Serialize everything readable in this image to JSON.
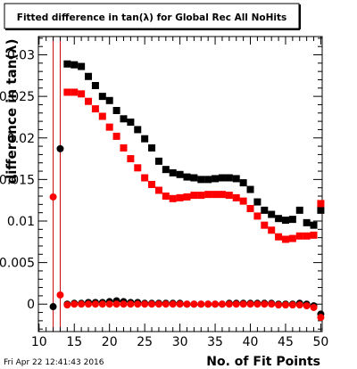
{
  "chart_data": {
    "type": "scatter",
    "title": "Fitted difference in tan(λ) for Global Rec All NoHits",
    "xlabel": "No. of Fit Points",
    "ylabel": "difference in tan(λ)",
    "timestamp": "Fri Apr 22 12:41:43 2016",
    "xlim": [
      9.9,
      50.2
    ],
    "ylim": [
      -0.0033,
      0.0322
    ],
    "x_ticks": [
      10,
      15,
      20,
      25,
      30,
      35,
      40,
      45,
      50
    ],
    "y_ticks": [
      {
        "value": 0,
        "label": "0"
      },
      {
        "value": 0.005,
        "label": "0.005"
      },
      {
        "value": 0.01,
        "label": "0.01"
      },
      {
        "value": 0.015,
        "label": "0.015"
      },
      {
        "value": 0.02,
        "label": "0.02"
      },
      {
        "value": 0.025,
        "label": "0.025"
      },
      {
        "value": 0.03,
        "label": "0.03"
      }
    ],
    "vertical_lines": [
      12,
      13
    ],
    "colors": {
      "black_series": "#000000",
      "red_series": "#ff0000",
      "vline": "#cc0000"
    },
    "series": [
      {
        "color": "black",
        "marker": "square",
        "points": [
          [
            14,
            0.0289
          ],
          [
            15,
            0.0288
          ],
          [
            16,
            0.0286
          ],
          [
            17,
            0.0274
          ],
          [
            18,
            0.0263
          ],
          [
            19,
            0.025
          ],
          [
            20,
            0.0245
          ],
          [
            21,
            0.0233
          ],
          [
            22,
            0.0223
          ],
          [
            23,
            0.0219
          ],
          [
            24,
            0.021
          ],
          [
            25,
            0.0199
          ],
          [
            26,
            0.0188
          ],
          [
            27,
            0.0172
          ],
          [
            28,
            0.0162
          ],
          [
            29,
            0.0158
          ],
          [
            30,
            0.0156
          ],
          [
            31,
            0.0153
          ],
          [
            32,
            0.0152
          ],
          [
            33,
            0.015
          ],
          [
            34,
            0.015
          ],
          [
            35,
            0.0151
          ],
          [
            36,
            0.0152
          ],
          [
            37,
            0.0152
          ],
          [
            38,
            0.0151
          ],
          [
            39,
            0.0146
          ],
          [
            40,
            0.0138
          ],
          [
            41,
            0.0123
          ],
          [
            42,
            0.0113
          ],
          [
            43,
            0.0108
          ],
          [
            44,
            0.0103
          ],
          [
            45,
            0.0101
          ],
          [
            46,
            0.0102
          ],
          [
            47,
            0.0113
          ],
          [
            48,
            0.0098
          ],
          [
            49,
            0.0095
          ],
          [
            50,
            0.0113
          ]
        ]
      },
      {
        "color": "red",
        "marker": "square",
        "points": [
          [
            14,
            0.0255
          ],
          [
            15,
            0.0255
          ],
          [
            16,
            0.0253
          ],
          [
            17,
            0.0244
          ],
          [
            18,
            0.0235
          ],
          [
            19,
            0.0226
          ],
          [
            20,
            0.0213
          ],
          [
            21,
            0.0202
          ],
          [
            22,
            0.0188
          ],
          [
            23,
            0.0175
          ],
          [
            24,
            0.0164
          ],
          [
            25,
            0.0152
          ],
          [
            26,
            0.0144
          ],
          [
            27,
            0.0137
          ],
          [
            28,
            0.013
          ],
          [
            29,
            0.0127
          ],
          [
            30,
            0.0128
          ],
          [
            31,
            0.0129
          ],
          [
            32,
            0.0131
          ],
          [
            33,
            0.0131
          ],
          [
            34,
            0.0132
          ],
          [
            35,
            0.0132
          ],
          [
            36,
            0.0132
          ],
          [
            37,
            0.0131
          ],
          [
            38,
            0.0128
          ],
          [
            39,
            0.0124
          ],
          [
            40,
            0.0115
          ],
          [
            41,
            0.0106
          ],
          [
            42,
            0.0095
          ],
          [
            43,
            0.0089
          ],
          [
            44,
            0.0081
          ],
          [
            45,
            0.0078
          ],
          [
            46,
            0.0079
          ],
          [
            47,
            0.0082
          ],
          [
            48,
            0.0082
          ],
          [
            49,
            0.0083
          ],
          [
            50,
            0.0121
          ]
        ]
      },
      {
        "color": "black",
        "marker": "circle",
        "points": [
          [
            12,
            -0.0003
          ],
          [
            13,
            0.0187
          ],
          [
            14,
            0
          ],
          [
            15,
            0.0001
          ],
          [
            16,
            0.0001
          ],
          [
            17,
            0.0002
          ],
          [
            18,
            0.0002
          ],
          [
            19,
            0.0002
          ],
          [
            20,
            0.0003
          ],
          [
            21,
            0.0004
          ],
          [
            22,
            0.0003
          ],
          [
            23,
            0.0002
          ],
          [
            24,
            0.0002
          ],
          [
            25,
            0.0001
          ],
          [
            26,
            0.0001
          ],
          [
            27,
            0.0001
          ],
          [
            28,
            0.0001
          ],
          [
            29,
            0.0001
          ],
          [
            30,
            0.0001
          ],
          [
            31,
            0
          ],
          [
            32,
            0
          ],
          [
            33,
            0
          ],
          [
            34,
            0
          ],
          [
            35,
            0
          ],
          [
            36,
            0
          ],
          [
            37,
            0.0001
          ],
          [
            38,
            0.0001
          ],
          [
            39,
            0.0001
          ],
          [
            40,
            0.0001
          ],
          [
            41,
            0.0001
          ],
          [
            42,
            0.0001
          ],
          [
            43,
            0.0001
          ],
          [
            44,
            0
          ],
          [
            45,
            0
          ],
          [
            46,
            0
          ],
          [
            47,
            0.0001
          ],
          [
            48,
            0
          ],
          [
            49,
            -0.0002
          ],
          [
            50,
            -0.0012
          ]
        ]
      },
      {
        "color": "red",
        "marker": "circle",
        "points": [
          [
            12,
            0.0129
          ],
          [
            13,
            0.0011
          ],
          [
            14,
            -0.0001
          ],
          [
            15,
            0
          ],
          [
            16,
            0
          ],
          [
            17,
            0
          ],
          [
            18,
            0
          ],
          [
            19,
            0
          ],
          [
            20,
            0
          ],
          [
            21,
            0
          ],
          [
            22,
            0
          ],
          [
            23,
            0
          ],
          [
            24,
            0
          ],
          [
            25,
            0
          ],
          [
            26,
            0
          ],
          [
            27,
            0
          ],
          [
            28,
            0
          ],
          [
            29,
            0
          ],
          [
            30,
            0
          ],
          [
            31,
            0
          ],
          [
            32,
            0
          ],
          [
            33,
            0
          ],
          [
            34,
            0
          ],
          [
            35,
            0
          ],
          [
            36,
            0
          ],
          [
            37,
            0
          ],
          [
            38,
            0
          ],
          [
            39,
            0
          ],
          [
            40,
            0
          ],
          [
            41,
            0
          ],
          [
            42,
            0
          ],
          [
            43,
            0
          ],
          [
            44,
            -0.0001
          ],
          [
            45,
            -0.0001
          ],
          [
            46,
            -0.0001
          ],
          [
            47,
            -0.0001
          ],
          [
            48,
            -0.0002
          ],
          [
            49,
            -0.0004
          ],
          [
            50,
            -0.0016
          ]
        ]
      }
    ]
  }
}
